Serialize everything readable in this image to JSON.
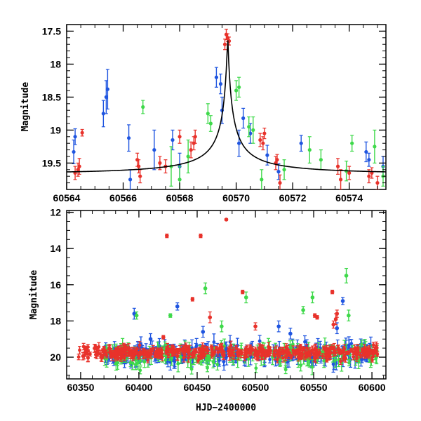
{
  "chart_data": [
    {
      "type": "scatter",
      "title": "",
      "xlabel": "",
      "ylabel": "Magnitude",
      "xlim": [
        60564.0,
        60575.3
      ],
      "ylim": [
        19.9,
        17.4
      ],
      "y_inverted": true,
      "x_ticks": [
        60564,
        60566,
        60568,
        60570,
        60572,
        60574
      ],
      "x_tick_labels": [
        "60564",
        "60566",
        "60568",
        "60570",
        "60572",
        "60574"
      ],
      "y_ticks": [
        17.5,
        18,
        18.5,
        19,
        19.5
      ],
      "y_tick_labels": [
        "17.5",
        "18",
        "18.5",
        "19",
        "19.5"
      ],
      "series": [
        {
          "color": "#1f55e0",
          "points": [
            [
              60564.25,
              19.33,
              0.18
            ],
            [
              60564.3,
              19.1,
              0.12
            ],
            [
              60565.3,
              18.75,
              0.2
            ],
            [
              60565.4,
              18.5,
              0.25
            ],
            [
              60565.45,
              18.38,
              0.3
            ],
            [
              60566.2,
              19.12,
              0.2
            ],
            [
              60566.25,
              19.75,
              0.15
            ],
            [
              60567.1,
              19.3,
              0.3
            ],
            [
              60567.75,
              19.15,
              0.15
            ],
            [
              60568.0,
              19.55,
              0.2
            ],
            [
              60569.3,
              18.2,
              0.15
            ],
            [
              60569.5,
              18.7,
              0.2
            ],
            [
              60569.45,
              18.3,
              0.15
            ],
            [
              60570.1,
              19.2,
              0.2
            ],
            [
              60570.25,
              18.82,
              0.15
            ],
            [
              60570.5,
              19.05,
              0.15
            ],
            [
              60571.1,
              19.38,
              0.15
            ],
            [
              60571.5,
              19.63,
              0.12
            ],
            [
              60572.3,
              19.2,
              0.12
            ],
            [
              60574.6,
              19.33,
              0.15
            ],
            [
              60574.7,
              19.45,
              0.1
            ],
            [
              60575.2,
              19.55,
              0.15
            ]
          ]
        },
        {
          "color": "#3ed94a",
          "points": [
            [
              60566.7,
              18.65,
              0.1
            ],
            [
              60567.7,
              19.55,
              0.3
            ],
            [
              60568.0,
              19.75,
              0.2
            ],
            [
              60568.3,
              19.4,
              0.25
            ],
            [
              60569.0,
              18.75,
              0.15
            ],
            [
              60569.1,
              18.9,
              0.12
            ],
            [
              60570.0,
              18.4,
              0.15
            ],
            [
              60570.1,
              18.35,
              0.15
            ],
            [
              60570.45,
              18.95,
              0.15
            ],
            [
              60570.6,
              19.0,
              0.2
            ],
            [
              60570.9,
              19.75,
              0.15
            ],
            [
              60572.6,
              19.3,
              0.2
            ],
            [
              60573.0,
              19.45,
              0.15
            ],
            [
              60573.9,
              19.62,
              0.15
            ],
            [
              60574.1,
              19.2,
              0.12
            ],
            [
              60574.9,
              19.25,
              0.25
            ],
            [
              60575.2,
              19.7,
              0.15
            ],
            [
              60571.7,
              19.6,
              0.15
            ]
          ]
        },
        {
          "color": "#e8322b",
          "points": [
            [
              60564.3,
              19.65,
              0.1
            ],
            [
              60564.4,
              19.6,
              0.1
            ],
            [
              60564.45,
              19.55,
              0.12
            ],
            [
              60564.55,
              19.04,
              0.05
            ],
            [
              60566.5,
              19.45,
              0.1
            ],
            [
              60566.55,
              19.55,
              0.1
            ],
            [
              60566.6,
              19.7,
              0.1
            ],
            [
              60567.3,
              19.5,
              0.1
            ],
            [
              60567.5,
              19.55,
              0.1
            ],
            [
              60568.0,
              19.1,
              0.1
            ],
            [
              60568.4,
              19.3,
              0.12
            ],
            [
              60568.5,
              19.2,
              0.1
            ],
            [
              60568.55,
              19.1,
              0.1
            ],
            [
              60569.6,
              17.7,
              0.08
            ],
            [
              60569.65,
              17.55,
              0.08
            ],
            [
              60569.7,
              17.6,
              0.06
            ],
            [
              60569.75,
              17.65,
              0.06
            ],
            [
              60570.85,
              19.15,
              0.1
            ],
            [
              60570.95,
              19.2,
              0.1
            ],
            [
              60571.0,
              19.05,
              0.08
            ],
            [
              60571.4,
              19.5,
              0.1
            ],
            [
              60571.45,
              19.45,
              0.08
            ],
            [
              60571.55,
              19.8,
              0.12
            ],
            [
              60573.6,
              19.55,
              0.12
            ],
            [
              60573.7,
              19.75,
              0.15
            ],
            [
              60574.0,
              19.65,
              0.1
            ],
            [
              60574.7,
              19.7,
              0.1
            ],
            [
              60574.8,
              19.65,
              0.08
            ],
            [
              60575.0,
              19.8,
              0.1
            ]
          ]
        }
      ],
      "model_curve": {
        "color": "#000000",
        "peak_x": 60569.7,
        "peak_mag": 17.55,
        "baseline_mag": 19.67,
        "width": 0.18
      }
    },
    {
      "type": "scatter",
      "title": "",
      "xlabel": "HJD−2400000",
      "ylabel": "Magnitude",
      "xlim": [
        60338.0,
        60612.0
      ],
      "ylim": [
        21.2,
        11.9
      ],
      "y_inverted": true,
      "x_ticks": [
        60350,
        60400,
        60450,
        60500,
        60550,
        60600
      ],
      "x_tick_labels": [
        "60350",
        "60400",
        "60450",
        "60500",
        "60550",
        "60600"
      ],
      "y_ticks": [
        12,
        14,
        16,
        18,
        20
      ],
      "y_tick_labels": [
        "12",
        "14",
        "16",
        "18",
        "20"
      ],
      "series": [
        {
          "color": "#1f55e0",
          "outliers": [
            [
              60396.0,
              17.6,
              0.3
            ],
            [
              60433.0,
              17.2,
              0.2
            ],
            [
              60575.0,
              16.9,
              0.2
            ],
            [
              60455.0,
              18.6,
              0.3
            ],
            [
              60530.0,
              18.7,
              0.3
            ],
            [
              60570.0,
              18.4,
              0.3
            ],
            [
              60520.0,
              18.3,
              0.3
            ],
            [
              60410.0,
              19.0,
              0.3
            ]
          ],
          "baseline": {
            "x_start": 60370,
            "x_end": 60600,
            "mean": 19.8,
            "spread": 0.5,
            "err": 0.4,
            "count": 260
          }
        },
        {
          "color": "#3ed94a",
          "outliers": [
            [
              60398.0,
              17.7,
              0.2
            ],
            [
              60427.0,
              17.7,
              0.1
            ],
            [
              60457.0,
              16.2,
              0.3
            ],
            [
              60492.0,
              16.7,
              0.3
            ],
            [
              60541.0,
              17.4,
              0.2
            ],
            [
              60549.0,
              16.7,
              0.3
            ],
            [
              60578.0,
              15.5,
              0.4
            ],
            [
              60580.0,
              17.7,
              0.3
            ],
            [
              60471.0,
              18.3,
              0.3
            ]
          ],
          "baseline": {
            "x_start": 60370,
            "x_end": 60605,
            "mean": 19.9,
            "spread": 0.6,
            "err": 0.4,
            "count": 170
          }
        },
        {
          "color": "#e8322b",
          "outliers": [
            [
              60424.0,
              13.3,
              0.1
            ],
            [
              60453.0,
              13.3,
              0.1
            ],
            [
              60475.0,
              12.4,
              0.05
            ],
            [
              60446.0,
              16.8,
              0.1
            ],
            [
              60489.0,
              16.4,
              0.1
            ],
            [
              60551.0,
              17.7,
              0.1
            ],
            [
              60553.0,
              17.8,
              0.1
            ],
            [
              60566.0,
              16.4,
              0.1
            ],
            [
              60570.0,
              17.6,
              0.2
            ],
            [
              60421.0,
              18.9,
              0.1
            ],
            [
              60461.0,
              17.8,
              0.3
            ],
            [
              60500.0,
              18.3,
              0.2
            ],
            [
              60567.0,
              18.2,
              0.2
            ],
            [
              60569.0,
              17.9,
              0.3
            ]
          ],
          "baseline": {
            "x_start": 60348,
            "x_end": 60605,
            "mean": 19.75,
            "spread": 0.35,
            "err": 0.2,
            "count": 420
          }
        }
      ]
    }
  ]
}
